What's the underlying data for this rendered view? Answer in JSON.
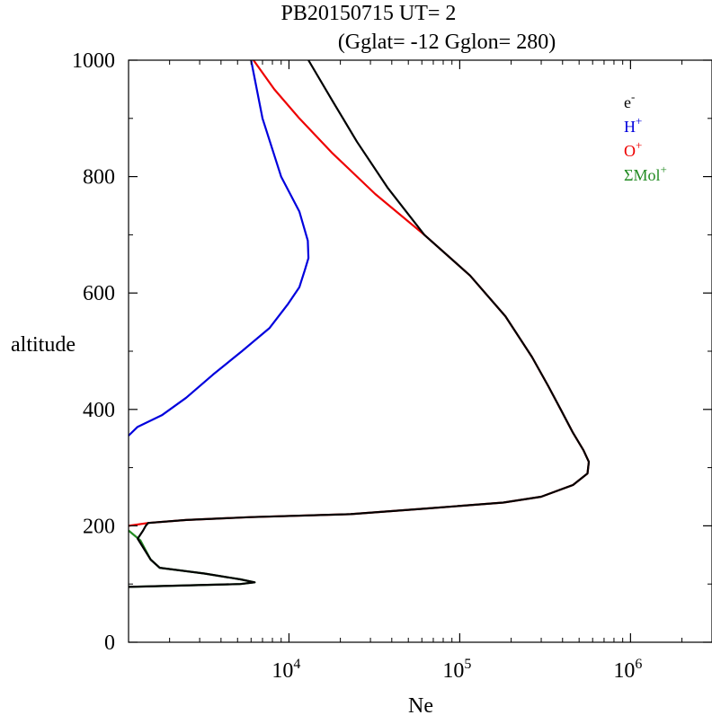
{
  "chart_data": {
    "type": "line",
    "title": "PB20150715   UT=  2",
    "subtitle": "(Gglat= -12   Gglon=  280)",
    "xlabel": "Ne",
    "ylabel": "altitude",
    "x_scale": "log",
    "xlim": [
      1150,
      3000000
    ],
    "ylim": [
      0,
      1000
    ],
    "x_ticks": [
      {
        "value": 10000,
        "base": "10",
        "exp": "4"
      },
      {
        "value": 100000,
        "base": "10",
        "exp": "5"
      },
      {
        "value": 1000000,
        "base": "10",
        "exp": "6"
      }
    ],
    "y_ticks": [
      0,
      200,
      400,
      600,
      800,
      1000
    ],
    "grid": false,
    "legend": {
      "position": "top-right",
      "entries": [
        {
          "base": "e",
          "sup": "-",
          "color": "#000000"
        },
        {
          "base": "H",
          "sup": "+",
          "color": "#0000dd"
        },
        {
          "base": "O",
          "sup": "+",
          "color": "#ee0000"
        },
        {
          "base": "ΣMol",
          "sup": "+",
          "color": "#228b22"
        }
      ]
    },
    "series": [
      {
        "color": "#0000dd",
        "points": [
          [
            6000,
            1000
          ],
          [
            7000,
            900
          ],
          [
            9000,
            800
          ],
          [
            11500,
            740
          ],
          [
            12900,
            690
          ],
          [
            13000,
            660
          ],
          [
            12400,
            640
          ],
          [
            11500,
            610
          ],
          [
            9800,
            580
          ],
          [
            7700,
            540
          ],
          [
            5300,
            500
          ],
          [
            3600,
            460
          ],
          [
            2500,
            420
          ],
          [
            1800,
            390
          ],
          [
            1300,
            370
          ],
          [
            1150,
            355
          ]
        ]
      },
      {
        "color": "#228b22",
        "points": [
          [
            1150,
            192
          ],
          [
            1350,
            175
          ],
          [
            1550,
            142
          ],
          [
            1750,
            128
          ],
          [
            3200,
            118
          ],
          [
            5200,
            108
          ],
          [
            6300,
            103
          ],
          [
            5200,
            100
          ],
          [
            1150,
            95
          ]
        ]
      },
      {
        "color": "#ee0000",
        "points": [
          [
            6200,
            1000
          ],
          [
            8200,
            950
          ],
          [
            11500,
            900
          ],
          [
            18000,
            840
          ],
          [
            32000,
            770
          ],
          [
            62000,
            700
          ],
          [
            115000,
            630
          ],
          [
            185000,
            560
          ],
          [
            265000,
            490
          ],
          [
            330000,
            440
          ],
          [
            390000,
            400
          ],
          [
            460000,
            360
          ],
          [
            530000,
            330
          ],
          [
            570000,
            310
          ],
          [
            560000,
            290
          ],
          [
            460000,
            270
          ],
          [
            300000,
            250
          ],
          [
            180000,
            240
          ],
          [
            65000,
            230
          ],
          [
            23000,
            220
          ],
          [
            6000,
            215
          ],
          [
            2500,
            210
          ],
          [
            1500,
            205
          ],
          [
            1150,
            200
          ]
        ]
      },
      {
        "color": "#000000",
        "points": [
          [
            13000,
            1000
          ],
          [
            18000,
            930
          ],
          [
            25000,
            860
          ],
          [
            38000,
            780
          ],
          [
            62000,
            700
          ],
          [
            115000,
            630
          ],
          [
            185000,
            560
          ],
          [
            265000,
            490
          ],
          [
            330000,
            440
          ],
          [
            390000,
            400
          ],
          [
            460000,
            360
          ],
          [
            530000,
            330
          ],
          [
            570000,
            310
          ],
          [
            560000,
            290
          ],
          [
            460000,
            270
          ],
          [
            300000,
            250
          ],
          [
            180000,
            240
          ],
          [
            65000,
            230
          ],
          [
            23000,
            220
          ],
          [
            6000,
            215
          ],
          [
            2500,
            210
          ],
          [
            1500,
            205
          ],
          [
            1450,
            200
          ],
          [
            1400,
            192
          ],
          [
            1300,
            178
          ],
          [
            1550,
            142
          ],
          [
            1750,
            128
          ],
          [
            3200,
            118
          ],
          [
            5200,
            108
          ],
          [
            6300,
            103
          ],
          [
            5200,
            100
          ],
          [
            1150,
            95
          ]
        ]
      }
    ]
  }
}
